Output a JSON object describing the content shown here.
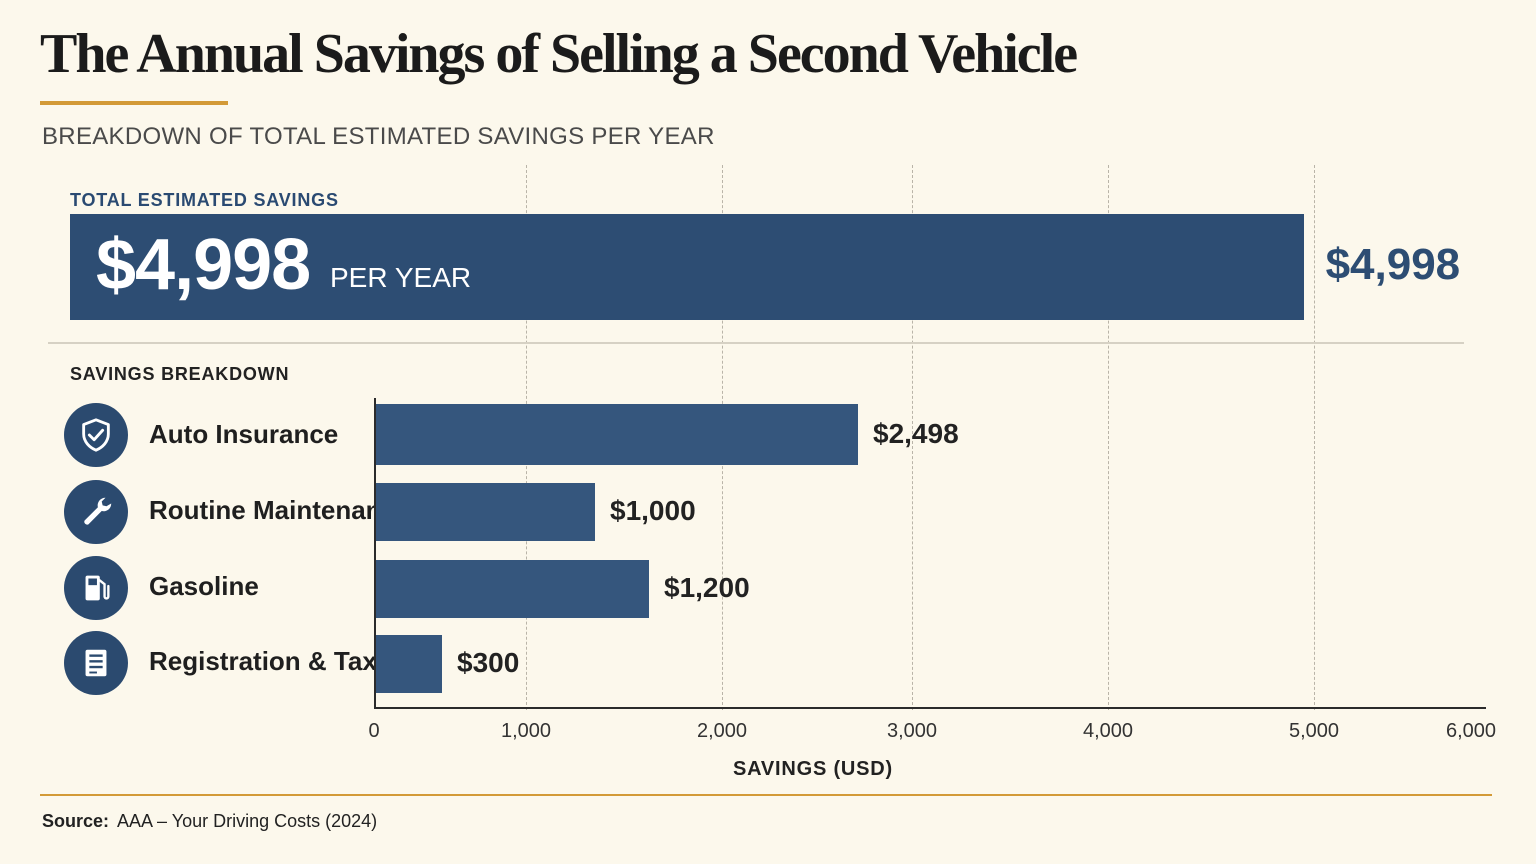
{
  "title": "The Annual Savings of Selling a Second Vehicle",
  "subtitle": "BREAKDOWN OF TOTAL ESTIMATED SAVINGS PER YEAR",
  "total": {
    "label": "TOTAL ESTIMATED SAVINGS",
    "big_text": "$4,998",
    "unit_text": "PER YEAR",
    "value_label": "$4,998",
    "value": 4998
  },
  "breakdown_label": "SAVINGS BREAKDOWN",
  "source": {
    "label": "Source:",
    "text": "AAA – Your Driving Costs (2024)"
  },
  "colors": {
    "bar": "#35567d",
    "total_bar": "#2d4d73",
    "accent": "#d39a37",
    "background": "#fcf8ec"
  },
  "chart_data": {
    "type": "bar",
    "orientation": "horizontal",
    "categories": [
      "Auto Insurance",
      "Routine Maintenance",
      "Gasoline",
      "Registration & Taxes"
    ],
    "values": [
      2498,
      1000,
      1200,
      300
    ],
    "value_labels": [
      "$2,498",
      "$1,000",
      "$1,200",
      "$300"
    ],
    "icons": [
      "shield-check-icon",
      "wrench-icon",
      "fuel-pump-icon",
      "document-icon"
    ],
    "xlabel": "SAVINGS (USD)",
    "xticks": [
      "0",
      "1,000",
      "2,000",
      "3,000",
      "4,000",
      "5,000",
      "6,000"
    ],
    "tick_values": [
      0,
      1000,
      2000,
      3000,
      4000,
      5000,
      6000
    ],
    "xlim": [
      0,
      6000
    ],
    "grid": true
  }
}
